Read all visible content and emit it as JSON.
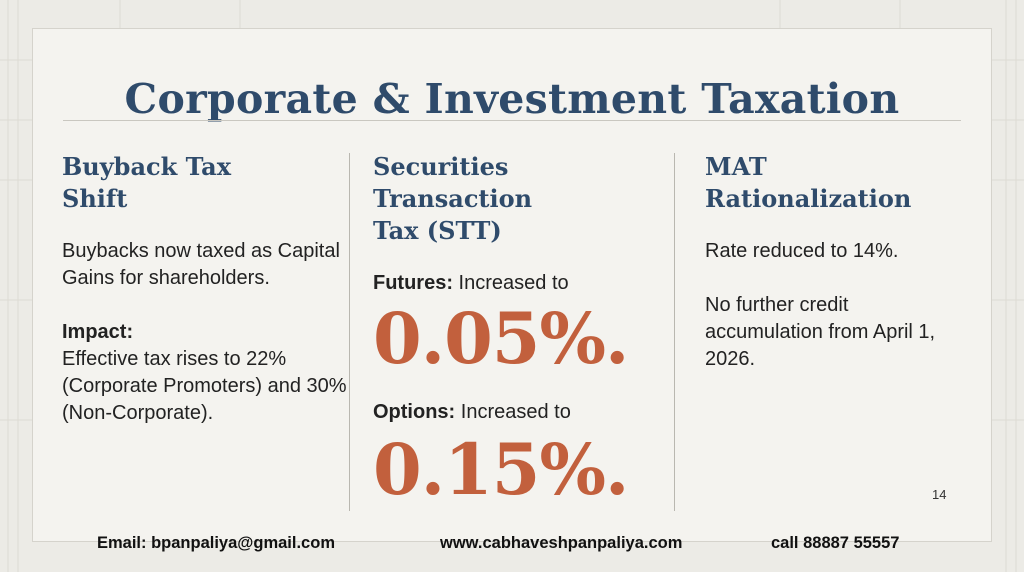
{
  "slide": {
    "title": "Corporate & Investment Taxation",
    "page_number": "14"
  },
  "columns": {
    "buyback": {
      "heading": "Buyback Tax\nShift",
      "description": "Buybacks now taxed as Capital Gains for shareholders.",
      "impact_label": "Impact:",
      "impact_text": "Effective tax rises to 22% (Corporate Promoters) and 30% (Non-Corporate)."
    },
    "stt": {
      "heading": "Securities Transaction\n Tax (STT)",
      "futures_label": "Futures:",
      "futures_text": " Increased to",
      "futures_rate": "0.05%.",
      "options_label": "Options:",
      "options_text": " Increased to",
      "options_rate": "0.15%."
    },
    "mat": {
      "heading": "MAT\nRationalization",
      "rate_text": "Rate reduced to 14%.",
      "credit_text": "No further credit accumulation from April 1, 2026."
    }
  },
  "footer": {
    "email": "Email: bpanpaliya@gmail.com",
    "website": "www.cabhaveshpanpaliya.com",
    "phone": "call 88887 55557"
  },
  "colors": {
    "heading": "#2f4b6b",
    "accent": "#c2603d",
    "text": "#222222",
    "background": "#f4f3ef"
  }
}
